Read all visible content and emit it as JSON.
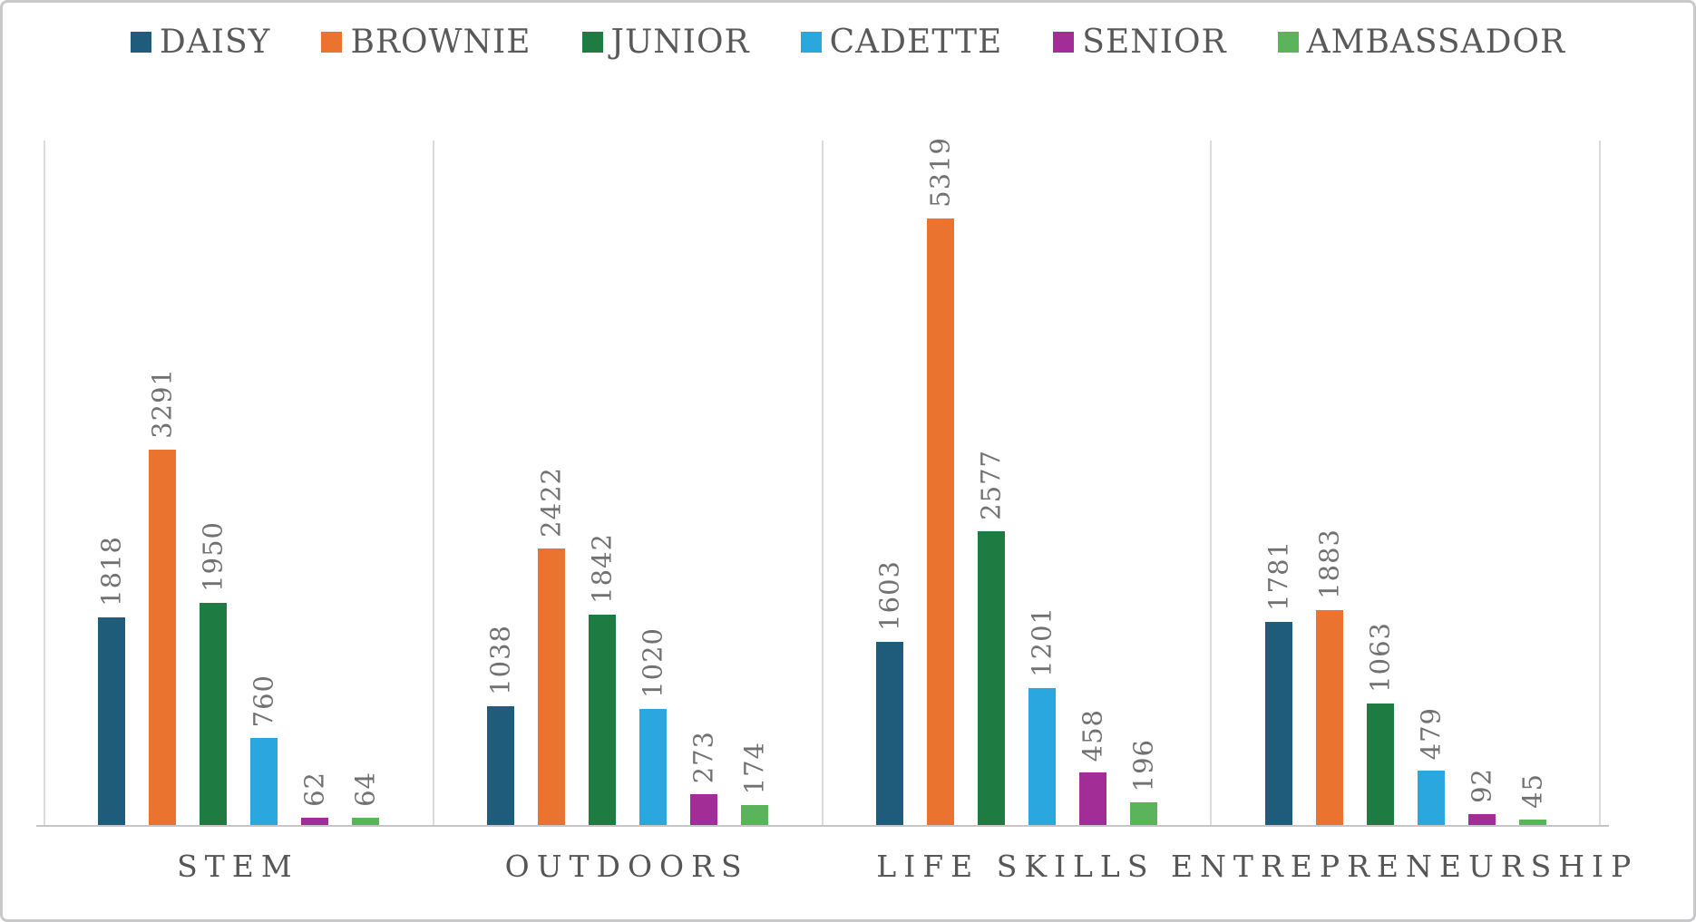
{
  "chart_data": {
    "type": "bar",
    "title": "",
    "categories": [
      "STEM",
      "OUTDOORS",
      "LIFE SKILLS",
      "ENTREPRENEURSHIP"
    ],
    "series": [
      {
        "name": "DAISY",
        "color": "#1f5b7b",
        "values": [
          1818,
          1038,
          1603,
          1781
        ]
      },
      {
        "name": "BROWNIE",
        "color": "#e9732f",
        "values": [
          3291,
          2422,
          5319,
          1883
        ]
      },
      {
        "name": "JUNIOR",
        "color": "#1e7b41",
        "values": [
          1950,
          1842,
          2577,
          1063
        ]
      },
      {
        "name": "CADETTE",
        "color": "#2aa7de",
        "values": [
          760,
          1020,
          1201,
          479
        ]
      },
      {
        "name": "SENIOR",
        "color": "#a32d96",
        "values": [
          62,
          273,
          458,
          92
        ]
      },
      {
        "name": "AMBASSADOR",
        "color": "#5bb35c",
        "values": [
          64,
          174,
          196,
          45
        ]
      }
    ],
    "ylim": [
      0,
      6000
    ],
    "xlabel": "",
    "ylabel": "",
    "grid": "vertical-category-separators-only",
    "legend_position": "top",
    "data_labels": {
      "visible": true,
      "rotation": 90,
      "color": "#717174"
    },
    "gridline_color": "#dbdbdb",
    "axis_line_color": "#c6c6c6",
    "text_color": "#595959"
  }
}
